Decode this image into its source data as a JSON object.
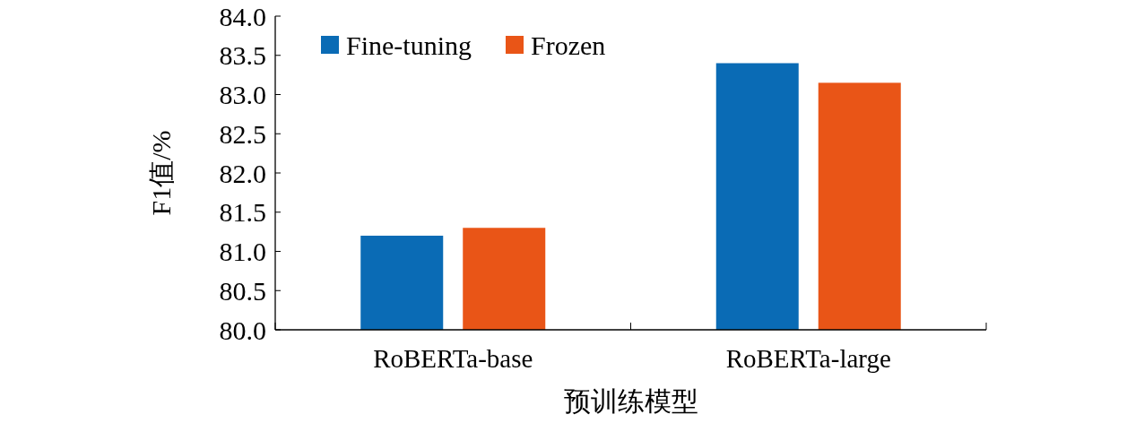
{
  "chart_data": {
    "type": "bar",
    "xlabel": "预训练模型",
    "ylabel": "F1值/%",
    "categories": [
      "RoBERTa-base",
      "RoBERTa-large"
    ],
    "series": [
      {
        "name": "Fine-tuning",
        "color": "#0a6bb5",
        "values": [
          81.2,
          83.4
        ]
      },
      {
        "name": "Frozen",
        "color": "#e95517",
        "values": [
          81.3,
          83.15
        ]
      }
    ],
    "ylim": [
      80.0,
      84.0
    ],
    "yticks": [
      {
        "value": 80,
        "label": "80.0"
      },
      {
        "value": 80.5,
        "label": "80.5"
      },
      {
        "value": 81,
        "label": "81.0"
      },
      {
        "value": 81.5,
        "label": "81.5"
      },
      {
        "value": 82,
        "label": "82.0"
      },
      {
        "value": 82.5,
        "label": "82.5"
      },
      {
        "value": 83,
        "label": "83.0"
      },
      {
        "value": 83.5,
        "label": "83.5"
      },
      {
        "value": 84,
        "label": "84.0"
      }
    ],
    "grid": false,
    "legend": "top left"
  }
}
